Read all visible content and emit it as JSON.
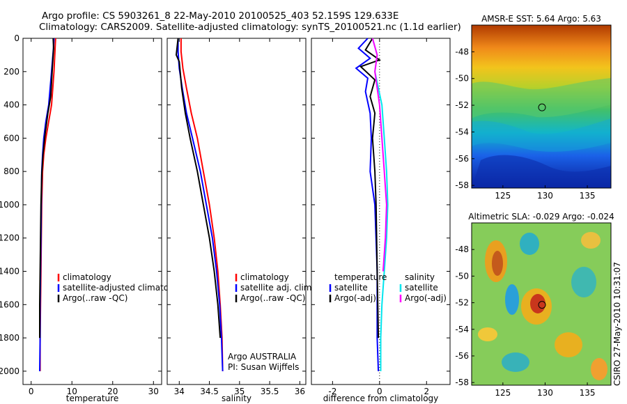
{
  "header": {
    "line1": "Argo profile: CS 5903261_8 22-May-2010 20100525_403 52.159S 129.633E",
    "line2": "Climatology: CARS2009. Satellite-adjusted climatology: synTS_20100521.nc (1.1d earlier)"
  },
  "colors": {
    "climatology": "#ff0000",
    "satellite": "#0000ff",
    "argo": "#000000",
    "satellite_salinity": "#00e5ee",
    "argo_salinity": "#ff00ff"
  },
  "chart_data": [
    {
      "type": "line",
      "panel": "temperature",
      "xlabel": "temperature",
      "xlim": [
        -2,
        32
      ],
      "xticks": [
        0,
        10,
        20,
        30
      ],
      "ylim": [
        0,
        2080
      ],
      "yticks": [
        0,
        200,
        400,
        600,
        800,
        1000,
        1200,
        1400,
        1600,
        1800,
        2000
      ],
      "y_reversed": true,
      "legend": [
        "climatology",
        "satellite-adjusted climatology",
        "Argo(..raw -QC)"
      ],
      "series": [
        {
          "name": "climatology",
          "color_key": "climatology",
          "x": [
            6.0,
            5.9,
            5.6,
            5.0,
            4.3,
            3.6,
            3.1,
            2.8,
            2.6,
            2.5,
            2.4,
            2.3,
            2.2,
            2.2
          ],
          "y": [
            0,
            50,
            200,
            400,
            500,
            600,
            700,
            800,
            1000,
            1200,
            1400,
            1600,
            1800,
            2000
          ]
        },
        {
          "name": "satellite-adjusted climatology",
          "color_key": "satellite",
          "x": [
            5.6,
            5.5,
            5.0,
            4.3,
            3.6,
            3.1,
            2.8,
            2.6,
            2.5,
            2.4,
            2.3,
            2.2,
            2.2,
            2.1
          ],
          "y": [
            0,
            50,
            200,
            400,
            500,
            600,
            700,
            800,
            1000,
            1200,
            1400,
            1600,
            1800,
            2000
          ]
        },
        {
          "name": "Argo(..raw -QC)",
          "color_key": "argo",
          "x": [
            5.4,
            5.5,
            5.2,
            4.8,
            4.1,
            3.4,
            2.9,
            2.6,
            2.4,
            2.3,
            2.2,
            2.1,
            2.1
          ],
          "y": [
            0,
            60,
            180,
            350,
            450,
            580,
            700,
            820,
            1000,
            1200,
            1400,
            1600,
            1800
          ]
        }
      ]
    },
    {
      "type": "line",
      "panel": "salinity",
      "xlabel": "salinity",
      "xlim": [
        33.8,
        36.1
      ],
      "xticks": [
        34,
        34.5,
        35,
        35.5,
        36
      ],
      "xtick_labels": [
        "34",
        "34.5",
        "35",
        "35.5",
        "36"
      ],
      "ylim": [
        0,
        2080
      ],
      "y_reversed": true,
      "legend": [
        "climatology",
        "satellite adj. clim.",
        "Argo(..raw -QC)"
      ],
      "annotation": [
        "Argo AUSTRALIA",
        "PI: Susan Wijffels"
      ],
      "series": [
        {
          "name": "climatology",
          "color_key": "climatology",
          "x": [
            34.03,
            34.03,
            34.06,
            34.12,
            34.2,
            34.3,
            34.4,
            34.5,
            34.58,
            34.64,
            34.68,
            34.71,
            34.72
          ],
          "y": [
            0,
            80,
            180,
            300,
            450,
            600,
            800,
            1000,
            1200,
            1400,
            1600,
            1800,
            2000
          ]
        },
        {
          "name": "satellite adj. clim.",
          "color_key": "satellite",
          "x": [
            33.98,
            33.98,
            34.0,
            34.05,
            34.12,
            34.22,
            34.35,
            34.45,
            34.55,
            34.62,
            34.67,
            34.7,
            34.72
          ],
          "y": [
            0,
            80,
            180,
            300,
            450,
            600,
            800,
            1000,
            1200,
            1400,
            1600,
            1800,
            2000
          ]
        },
        {
          "name": "Argo(..raw -QC)",
          "color_key": "argo",
          "x": [
            33.98,
            33.95,
            34.0,
            34.04,
            34.1,
            34.18,
            34.3,
            34.4,
            34.5,
            34.58,
            34.64,
            34.68
          ],
          "y": [
            0,
            100,
            140,
            300,
            450,
            600,
            800,
            1000,
            1200,
            1400,
            1600,
            1800
          ]
        }
      ]
    },
    {
      "type": "line",
      "panel": "difference",
      "xlabel": "difference from climatology",
      "xlim": [
        -2.9,
        3.0
      ],
      "xticks": [
        -2,
        0,
        2
      ],
      "ylim": [
        0,
        2080
      ],
      "y_reversed": true,
      "legend_temperature": [
        "temperature",
        "satellite",
        "Argo(-adj)"
      ],
      "legend_salinity": [
        "salinity",
        "satellite",
        "Argo(-adj)"
      ],
      "series": [
        {
          "name": "satellite",
          "color_key": "satellite",
          "x": [
            -0.5,
            -0.9,
            -0.4,
            -1.0,
            -0.5,
            -0.6,
            -0.4,
            -0.35,
            -0.4,
            -0.2,
            -0.1,
            -0.1,
            -0.05
          ],
          "y": [
            0,
            60,
            120,
            180,
            240,
            320,
            450,
            600,
            800,
            1000,
            1400,
            1800,
            2000
          ]
        },
        {
          "name": "Argo(-adj)",
          "color_key": "argo",
          "x": [
            -0.3,
            -0.6,
            0.0,
            -0.8,
            -0.2,
            -0.4,
            -0.2,
            -0.3,
            -0.2,
            -0.15,
            -0.1,
            -0.05
          ],
          "y": [
            0,
            70,
            130,
            170,
            250,
            350,
            450,
            600,
            800,
            1000,
            1400,
            1800
          ]
        },
        {
          "name": "satellite",
          "color_key": "satellite_salinity",
          "x": [
            -0.3,
            -0.1,
            -0.2,
            0.1,
            0.2,
            0.3,
            0.35,
            0.3,
            0.2,
            0.1,
            0.05,
            0.05
          ],
          "y": [
            0,
            100,
            200,
            400,
            600,
            800,
            1000,
            1200,
            1400,
            1600,
            1800,
            2000
          ]
        },
        {
          "name": "Argo(-adj)",
          "color_key": "argo_salinity",
          "x": [
            -0.3,
            -0.1,
            -0.2,
            0.0,
            0.1,
            0.2,
            0.3,
            0.25,
            0.15
          ],
          "y": [
            0,
            100,
            200,
            400,
            600,
            800,
            1000,
            1200,
            1400
          ]
        }
      ]
    },
    {
      "type": "heatmap",
      "panel": "sst_map",
      "title": "AMSR-E SST: 5.64 Argo: 5.63",
      "xlim": [
        121.3,
        137.8
      ],
      "ylim": [
        -58.2,
        -46.0
      ],
      "xticks": [
        125,
        130,
        135
      ],
      "yticks": [
        -48,
        -50,
        -52,
        -54,
        -56,
        -58
      ],
      "marker": {
        "lon": 129.633,
        "lat": -52.159
      }
    },
    {
      "type": "heatmap",
      "panel": "sla_map",
      "title": "Altimetric SLA: -0.029 Argo: -0.024",
      "xlim": [
        121.3,
        137.8
      ],
      "ylim": [
        -58.2,
        -46.0
      ],
      "xticks": [
        125,
        130,
        135
      ],
      "yticks": [
        -48,
        -50,
        -52,
        -54,
        -56,
        -58
      ],
      "marker": {
        "lon": 129.633,
        "lat": -52.159
      }
    }
  ],
  "footer_stamp": "CSIRO 27-May-2010 10:31:07"
}
